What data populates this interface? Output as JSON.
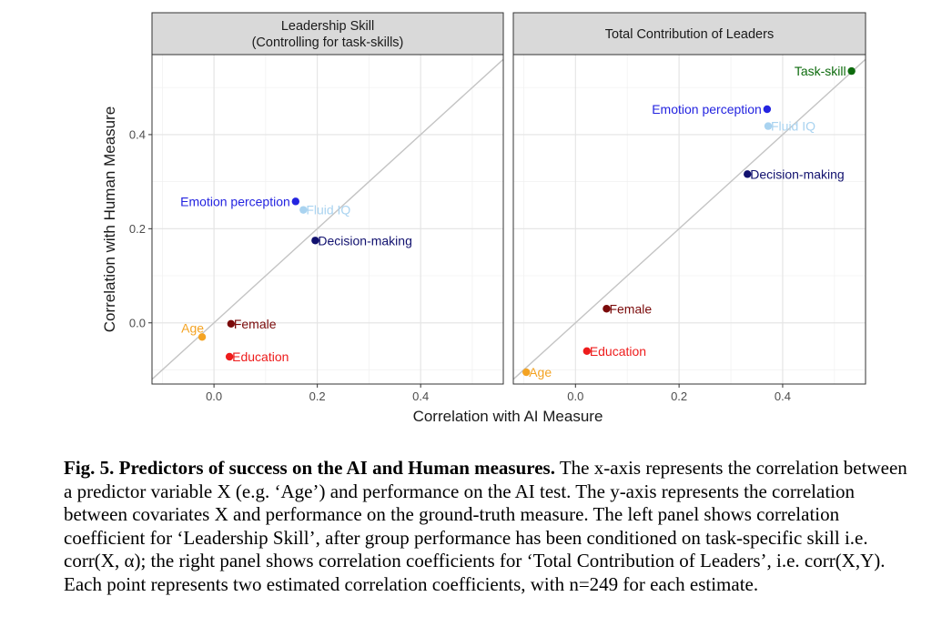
{
  "chart_data": [
    {
      "type": "scatter",
      "title": "Leadership Skill\n(Controlling for task-skills)",
      "xlabel": "Correlation with AI Measure",
      "ylabel": "Correlation with Human Measure",
      "xlim": [
        -0.12,
        0.56
      ],
      "ylim": [
        -0.13,
        0.57
      ],
      "xticks": [
        "0.0",
        "0.2",
        "0.4"
      ],
      "xtick_values": [
        0.0,
        0.2,
        0.4
      ],
      "yticks": [
        "0.0",
        "0.2",
        "0.4"
      ],
      "ytick_values": [
        0.0,
        0.2,
        0.4
      ],
      "grid": true,
      "reference_line": "y = x",
      "points": [
        {
          "label": "Emotion perception",
          "x": 0.158,
          "y": 0.258,
          "color": "#2424e0",
          "label_side": "left"
        },
        {
          "label": "Fluid IQ",
          "x": 0.173,
          "y": 0.24,
          "color": "#a9d3f0",
          "label_side": "right"
        },
        {
          "label": "Decision-making",
          "x": 0.196,
          "y": 0.175,
          "color": "#10106e",
          "label_side": "right"
        },
        {
          "label": "Female",
          "x": 0.033,
          "y": -0.002,
          "color": "#7a0a0a",
          "label_side": "right"
        },
        {
          "label": "Age",
          "x": -0.023,
          "y": -0.03,
          "color": "#f4a322",
          "label_side": "left-up"
        },
        {
          "label": "Education",
          "x": 0.03,
          "y": -0.072,
          "color": "#ee1c1c",
          "label_side": "right"
        }
      ]
    },
    {
      "type": "scatter",
      "title": "Total Contribution of Leaders",
      "xlabel": "Correlation with AI Measure",
      "ylabel": "Correlation with Human Measure",
      "xlim": [
        -0.12,
        0.56
      ],
      "ylim": [
        -0.13,
        0.57
      ],
      "xticks": [
        "0.0",
        "0.2",
        "0.4"
      ],
      "xtick_values": [
        0.0,
        0.2,
        0.4
      ],
      "yticks": [
        "0.0",
        "0.2",
        "0.4"
      ],
      "ytick_values": [
        0.0,
        0.2,
        0.4
      ],
      "grid": true,
      "reference_line": "y = x",
      "points": [
        {
          "label": "Task-skill",
          "x": 0.533,
          "y": 0.535,
          "color": "#0d6b0d",
          "label_side": "left"
        },
        {
          "label": "Emotion perception",
          "x": 0.37,
          "y": 0.454,
          "color": "#2424e0",
          "label_side": "left"
        },
        {
          "label": "Fluid IQ",
          "x": 0.372,
          "y": 0.418,
          "color": "#a9d3f0",
          "label_side": "right"
        },
        {
          "label": "Decision-making",
          "x": 0.332,
          "y": 0.316,
          "color": "#10106e",
          "label_side": "right"
        },
        {
          "label": "Female",
          "x": 0.06,
          "y": 0.03,
          "color": "#7a0a0a",
          "label_side": "right"
        },
        {
          "label": "Education",
          "x": 0.022,
          "y": -0.06,
          "color": "#ee1c1c",
          "label_side": "right"
        },
        {
          "label": "Age",
          "x": -0.095,
          "y": -0.105,
          "color": "#f4a322",
          "label_side": "right"
        }
      ]
    }
  ],
  "caption": {
    "title": "Fig. 5. Predictors of success on the AI and Human measures.",
    "body": " The x-axis represents the correlation between a predictor variable X (e.g. ‘Age’) and performance on the AI test. The y-axis represents the correlation between covariates X and performance on the ground-truth measure. The left panel shows correlation coefficient for ‘Leadership Skill’, after group performance has been conditioned on task-specific skill i.e. corr(X, α); the right panel shows correlation coefficients for ‘Total Contribution of Leaders’, i.e. corr(X,Y). Each point represents two estimated correlation coefficients, with n=249 for each estimate."
  }
}
